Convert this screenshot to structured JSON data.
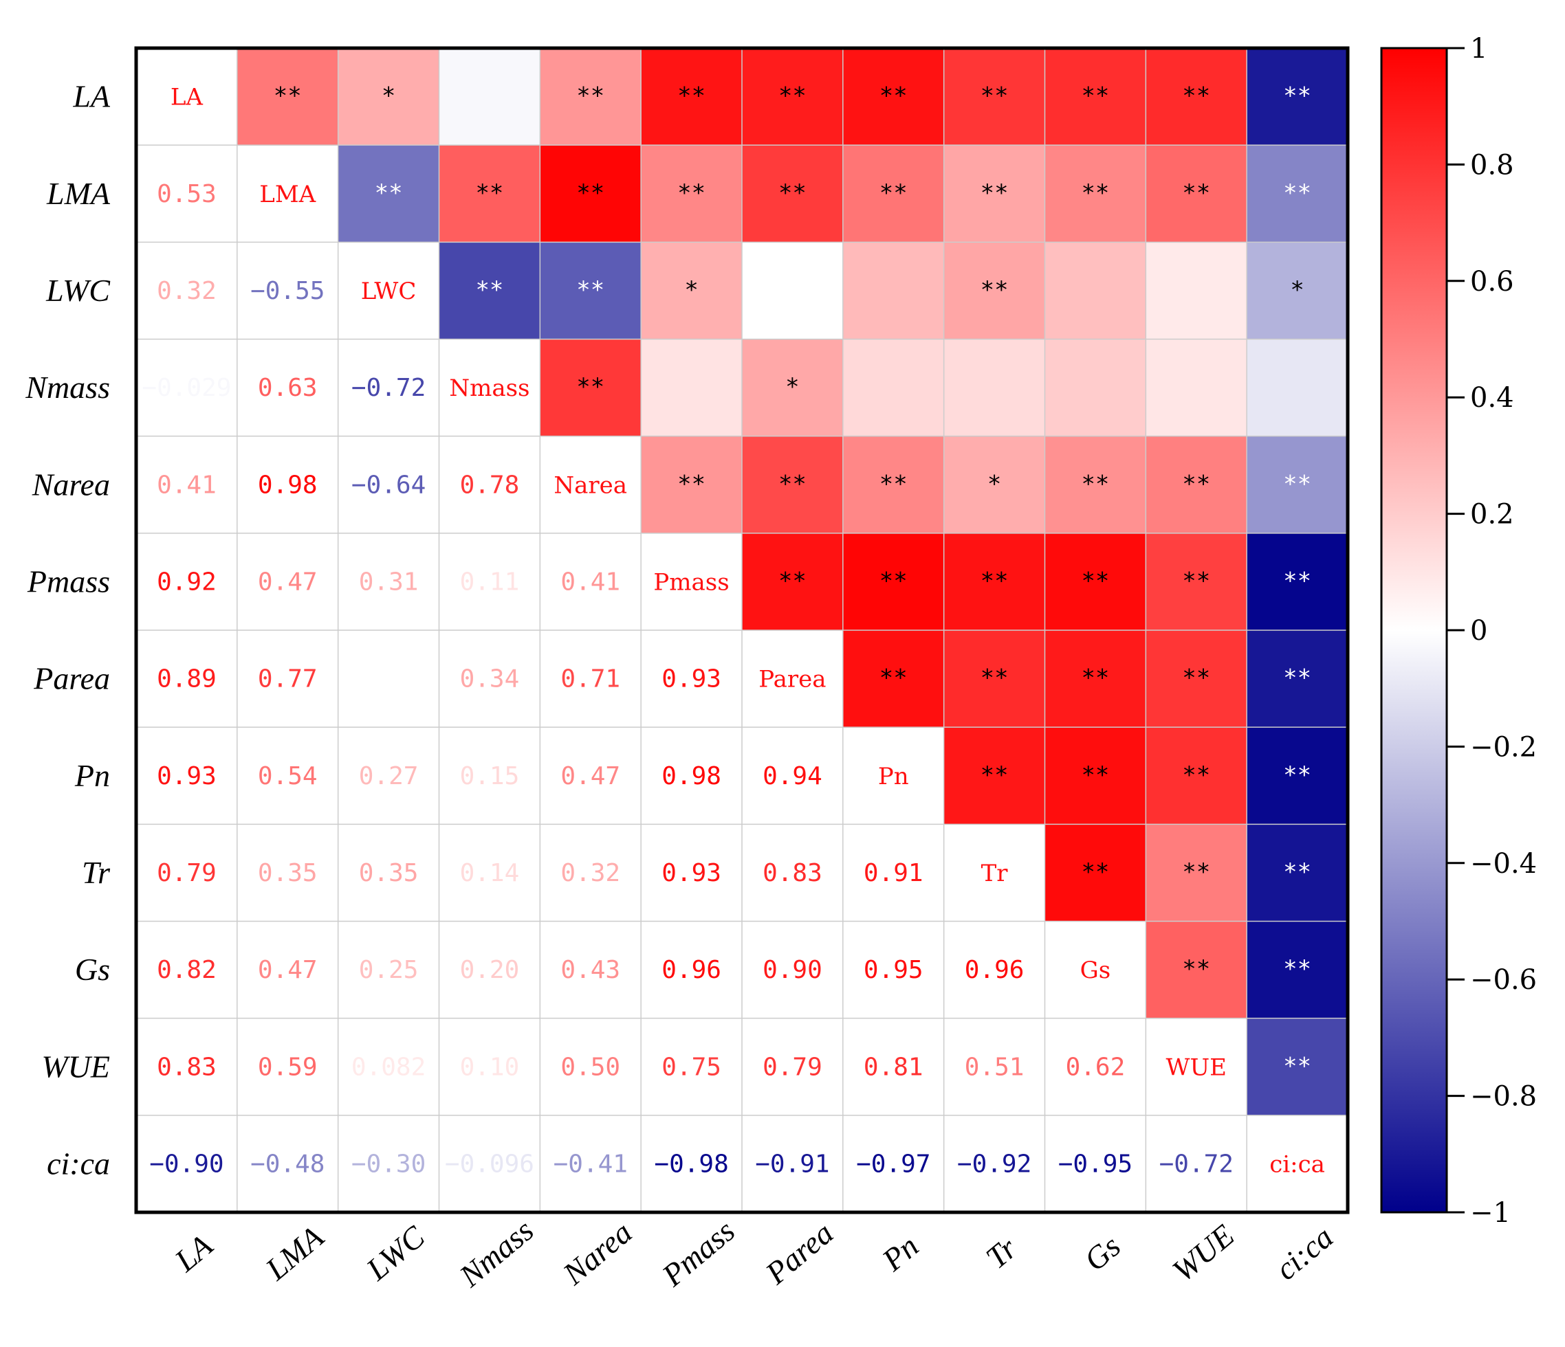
{
  "chart_data": {
    "type": "heatmap",
    "title": "",
    "variables": [
      "LA",
      "LMA",
      "LWC",
      "Nmass",
      "Narea",
      "Pmass",
      "Parea",
      "Pn",
      "Tr",
      "Gs",
      "WUE",
      "ci:ca"
    ],
    "lower_triangle_labels": [
      [],
      [
        "0.53"
      ],
      [
        "0.32",
        "−0.55"
      ],
      [
        "−0.029",
        "0.63",
        "−0.72"
      ],
      [
        "0.41",
        "0.98",
        "−0.64",
        "0.78"
      ],
      [
        "0.92",
        "0.47",
        "0.31",
        "0.11",
        "0.41"
      ],
      [
        "0.89",
        "0.77",
        "",
        "0.34",
        "0.71",
        "0.93"
      ],
      [
        "0.93",
        "0.54",
        "0.27",
        "0.15",
        "0.47",
        "0.98",
        "0.94"
      ],
      [
        "0.79",
        "0.35",
        "0.35",
        "0.14",
        "0.32",
        "0.93",
        "0.83",
        "0.91"
      ],
      [
        "0.82",
        "0.47",
        "0.25",
        "0.20",
        "0.43",
        "0.96",
        "0.90",
        "0.95",
        "0.96"
      ],
      [
        "0.83",
        "0.59",
        "0.082",
        "0.10",
        "0.50",
        "0.75",
        "0.79",
        "0.81",
        "0.51",
        "0.62"
      ],
      [
        "−0.90",
        "−0.48",
        "−0.30",
        "−0.096",
        "−0.41",
        "−0.98",
        "−0.91",
        "−0.97",
        "−0.92",
        "−0.95",
        "−0.72"
      ]
    ],
    "upper_triangle_values": [
      [
        null,
        0.53,
        0.32,
        -0.029,
        0.41,
        0.92,
        0.89,
        0.93,
        0.79,
        0.82,
        0.83,
        -0.9
      ],
      [
        null,
        null,
        -0.55,
        0.63,
        0.98,
        0.47,
        0.77,
        0.54,
        0.35,
        0.47,
        0.59,
        -0.48
      ],
      [
        null,
        null,
        null,
        -0.72,
        -0.64,
        0.31,
        0.0,
        0.27,
        0.35,
        0.25,
        0.082,
        -0.3
      ],
      [
        null,
        null,
        null,
        null,
        0.78,
        0.11,
        0.34,
        0.15,
        0.14,
        0.2,
        0.1,
        -0.096
      ],
      [
        null,
        null,
        null,
        null,
        null,
        0.41,
        0.71,
        0.47,
        0.32,
        0.43,
        0.5,
        -0.41
      ],
      [
        null,
        null,
        null,
        null,
        null,
        null,
        0.93,
        0.98,
        0.93,
        0.96,
        0.75,
        -0.98
      ],
      [
        null,
        null,
        null,
        null,
        null,
        null,
        null,
        0.94,
        0.83,
        0.9,
        0.79,
        -0.91
      ],
      [
        null,
        null,
        null,
        null,
        null,
        null,
        null,
        null,
        0.91,
        0.95,
        0.81,
        -0.97
      ],
      [
        null,
        null,
        null,
        null,
        null,
        null,
        null,
        null,
        null,
        0.96,
        0.51,
        -0.92
      ],
      [
        null,
        null,
        null,
        null,
        null,
        null,
        null,
        null,
        null,
        null,
        0.62,
        -0.95
      ],
      [
        null,
        null,
        null,
        null,
        null,
        null,
        null,
        null,
        null,
        null,
        null,
        -0.72
      ],
      [
        null,
        null,
        null,
        null,
        null,
        null,
        null,
        null,
        null,
        null,
        null,
        null
      ]
    ],
    "significance": [
      [
        "",
        "**",
        "*",
        "",
        "**",
        "**",
        "**",
        "**",
        "**",
        "**",
        "**",
        "**"
      ],
      [
        "",
        "",
        "**",
        "**",
        "**",
        "**",
        "**",
        "**",
        "**",
        "**",
        "**",
        "**"
      ],
      [
        "",
        "",
        "",
        "**",
        "**",
        "*",
        "",
        "",
        "**",
        "",
        "",
        "*"
      ],
      [
        "",
        "",
        "",
        "",
        "**",
        "",
        "*",
        "",
        "",
        "",
        "",
        ""
      ],
      [
        "",
        "",
        "",
        "",
        "",
        "**",
        "**",
        "**",
        "*",
        "**",
        "**",
        "**"
      ],
      [
        "",
        "",
        "",
        "",
        "",
        "",
        "**",
        "**",
        "**",
        "**",
        "**",
        "**"
      ],
      [
        "",
        "",
        "",
        "",
        "",
        "",
        "",
        "**",
        "**",
        "**",
        "**",
        "**"
      ],
      [
        "",
        "",
        "",
        "",
        "",
        "",
        "",
        "",
        "**",
        "**",
        "**",
        "**"
      ],
      [
        "",
        "",
        "",
        "",
        "",
        "",
        "",
        "",
        "",
        "**",
        "**",
        "**"
      ],
      [
        "",
        "",
        "",
        "",
        "",
        "",
        "",
        "",
        "",
        "",
        "**",
        "**"
      ],
      [
        "",
        "",
        "",
        "",
        "",
        "",
        "",
        "",
        "",
        "",
        "",
        "**"
      ],
      [
        "",
        "",
        "",
        "",
        "",
        "",
        "",
        "",
        "",
        "",
        "",
        ""
      ]
    ],
    "colorbar": {
      "range": [
        -1,
        1
      ],
      "ticks": [
        1,
        0.8,
        0.6,
        0.4,
        0.2,
        0,
        -0.2,
        -0.4,
        -0.6,
        -0.8,
        -1
      ],
      "tick_labels": [
        "1",
        "0.8",
        "0.6",
        "0.4",
        "0.2",
        "0",
        "−0.2",
        "−0.4",
        "−0.6",
        "−0.8",
        "−1"
      ],
      "colors": {
        "positive": "#ff0000",
        "zero": "#ffffff",
        "negative": "#00008b"
      },
      "position": "right"
    },
    "star_colors": {
      "dark_bg": "#ffffff",
      "light_bg": "#000000"
    }
  }
}
